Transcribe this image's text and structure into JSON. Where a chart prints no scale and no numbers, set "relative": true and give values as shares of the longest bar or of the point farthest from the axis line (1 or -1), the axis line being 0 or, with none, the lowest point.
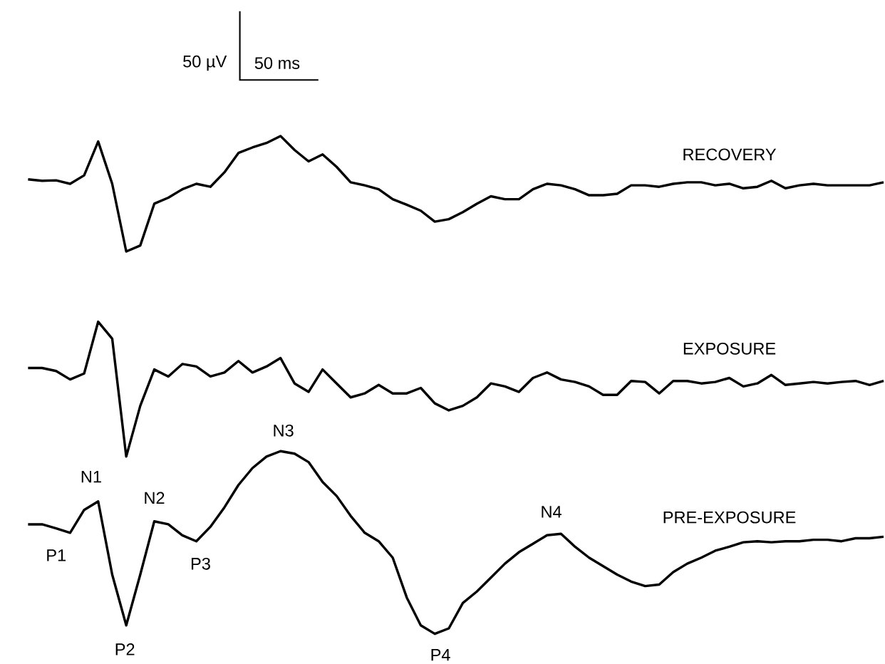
{
  "chart_data": {
    "type": "line",
    "relative": true,
    "tick_labels": false,
    "categories": [
      null,
      null,
      null,
      null,
      null,
      null,
      null,
      null,
      null,
      null,
      null,
      null,
      null,
      null,
      null,
      null,
      null,
      null,
      null,
      null,
      null,
      null,
      null,
      null,
      null,
      null,
      null,
      null,
      null,
      null,
      null,
      null,
      null,
      null,
      null,
      null,
      null,
      null,
      null,
      null,
      null,
      null,
      null,
      null,
      null,
      null,
      null,
      null,
      null,
      null,
      null,
      null,
      null,
      null,
      null,
      null,
      null,
      null,
      null,
      null,
      null,
      null
    ],
    "series": [
      {
        "name": "RECOVERY",
        "color": "#000000",
        "values": [
          0.913,
          0.91,
          0.911,
          0.904,
          0.921,
          0.989,
          0.904,
          0.768,
          0.78,
          0.864,
          0.876,
          0.893,
          0.904,
          0.898,
          0.927,
          0.966,
          0.977,
          0.986,
          1,
          0.972,
          0.949,
          0.963,
          0.938,
          0.907,
          0.901,
          0.893,
          0.873,
          0.862,
          0.85,
          0.828,
          0.833,
          0.847,
          0.864,
          0.879,
          0.873,
          0.873,
          0.893,
          0.904,
          0.901,
          0.893,
          0.881,
          0.881,
          0.884,
          0.901,
          0.901,
          0.898,
          0.904,
          0.907,
          0.907,
          0.901,
          0.904,
          0.895,
          0.898,
          0.91,
          0.895,
          0.901,
          0.904,
          0.901,
          0.901,
          0.901,
          0.901,
          0.907
        ]
      },
      {
        "name": "EXPOSURE",
        "color": "#000000",
        "values": [
          0.534,
          0.534,
          0.528,
          0.511,
          0.523,
          0.627,
          0.593,
          0.356,
          0.458,
          0.531,
          0.517,
          0.542,
          0.537,
          0.517,
          0.525,
          0.548,
          0.525,
          0.537,
          0.554,
          0.503,
          0.486,
          0.531,
          0.503,
          0.475,
          0.483,
          0.5,
          0.483,
          0.483,
          0.494,
          0.463,
          0.449,
          0.458,
          0.475,
          0.503,
          0.497,
          0.486,
          0.514,
          0.525,
          0.511,
          0.506,
          0.497,
          0.48,
          0.48,
          0.508,
          0.506,
          0.483,
          0.508,
          0.508,
          0.503,
          0.506,
          0.514,
          0.497,
          0.503,
          0.52,
          0.5,
          0.503,
          0.506,
          0.503,
          0.506,
          0.508,
          0.5,
          0.508
        ]
      },
      {
        "name": "PRE-EXPOSURE",
        "color": "#000000",
        "values": [
          0.22,
          0.22,
          0.212,
          0.203,
          0.249,
          0.266,
          0.119,
          0.017,
          0.119,
          0.226,
          0.22,
          0.198,
          0.186,
          0.215,
          0.254,
          0.299,
          0.333,
          0.356,
          0.367,
          0.362,
          0.345,
          0.305,
          0.277,
          0.237,
          0.203,
          0.186,
          0.153,
          0.073,
          0.017,
          0,
          0.011,
          0.062,
          0.085,
          0.113,
          0.141,
          0.164,
          0.181,
          0.198,
          0.201,
          0.175,
          0.153,
          0.136,
          0.119,
          0.105,
          0.096,
          0.099,
          0.124,
          0.141,
          0.153,
          0.167,
          0.175,
          0.184,
          0.186,
          0.184,
          0.186,
          0.186,
          0.189,
          0.189,
          0.186,
          0.192,
          0.192,
          0.195
        ]
      }
    ],
    "annotations": [
      "50 µV",
      "50 ms",
      "P1",
      "N1",
      "P2",
      "N2",
      "P3",
      "N3",
      "P4",
      "N4"
    ]
  }
}
